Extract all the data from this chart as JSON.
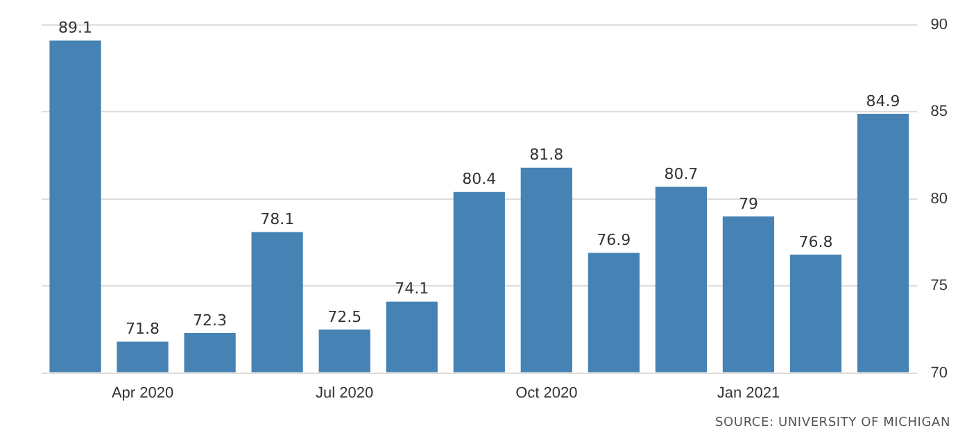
{
  "chart_data": {
    "type": "bar",
    "categories": [
      null,
      "Apr 2020",
      null,
      null,
      "Jul 2020",
      null,
      null,
      "Oct 2020",
      null,
      null,
      "Jan 2021",
      null,
      null
    ],
    "values": [
      89.1,
      71.8,
      72.3,
      78.1,
      72.5,
      74.1,
      80.4,
      81.8,
      76.9,
      80.7,
      79,
      76.8,
      84.9
    ],
    "value_labels": [
      "89.1",
      "71.8",
      "72.3",
      "78.1",
      "72.5",
      "74.1",
      "80.4",
      "81.8",
      "76.9",
      "80.7",
      "79",
      "76.8",
      "84.9"
    ],
    "color": "#4682b4",
    "ylim": [
      70,
      90
    ],
    "yticks": [
      70,
      75,
      80,
      85,
      90
    ],
    "grid": "y",
    "legend": false,
    "annotations": [
      "SOURCE: UNIVERSITY OF MICHIGAN"
    ]
  }
}
